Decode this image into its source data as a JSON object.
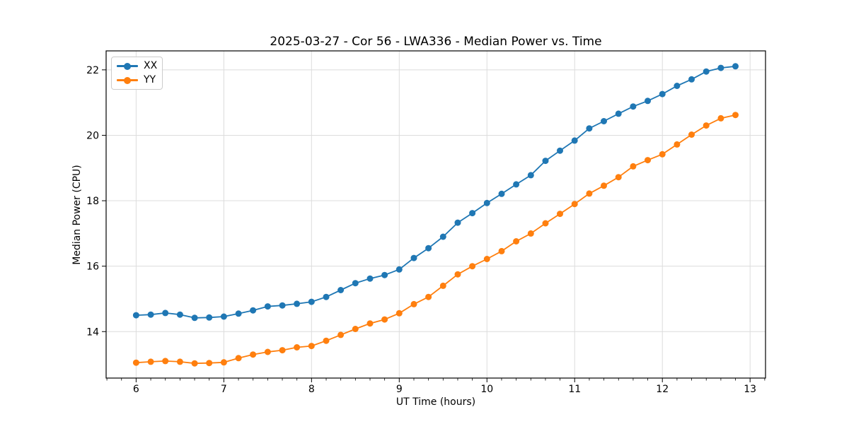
{
  "figure": {
    "background": "#ffffff",
    "frame_color": "#000000",
    "grid_color": "#dcdcdc",
    "text_color": "#000000"
  },
  "chart_data": {
    "type": "line",
    "title": "2025-03-27 - Cor 56 - LWA336 - Median Power vs. Time",
    "xlabel": "UT Time (hours)",
    "ylabel": "Median Power (CPU)",
    "xlim": [
      5.658,
      13.176
    ],
    "ylim": [
      12.58,
      22.58
    ],
    "xticks": [
      6,
      7,
      8,
      9,
      10,
      11,
      12,
      13
    ],
    "yticks": [
      14,
      16,
      18,
      20,
      22
    ],
    "x_minor_step": 0.16667,
    "grid": true,
    "legend_position": "upper-left",
    "marker": "circle",
    "x": [
      6.0,
      6.167,
      6.333,
      6.5,
      6.667,
      6.833,
      7.0,
      7.167,
      7.333,
      7.5,
      7.667,
      7.833,
      8.0,
      8.167,
      8.333,
      8.5,
      8.667,
      8.833,
      9.0,
      9.167,
      9.333,
      9.5,
      9.667,
      9.833,
      10.0,
      10.167,
      10.333,
      10.5,
      10.667,
      10.833,
      11.0,
      11.167,
      11.333,
      11.5,
      11.667,
      11.833,
      12.0,
      12.167,
      12.333,
      12.5,
      12.667,
      12.833
    ],
    "series": [
      {
        "name": "XX",
        "color": "#1f77b4",
        "values": [
          14.5,
          14.52,
          14.57,
          14.52,
          14.42,
          14.43,
          14.46,
          14.55,
          14.65,
          14.77,
          14.8,
          14.85,
          14.91,
          15.06,
          15.27,
          15.48,
          15.62,
          15.73,
          15.9,
          16.25,
          16.55,
          16.9,
          17.33,
          17.62,
          17.93,
          18.21,
          18.5,
          18.78,
          19.22,
          19.53,
          19.84,
          20.21,
          20.43,
          20.66,
          20.88,
          21.05,
          21.26,
          21.51,
          21.71,
          21.95,
          22.06,
          22.11
        ]
      },
      {
        "name": "YY",
        "color": "#ff7f0e",
        "values": [
          13.05,
          13.08,
          13.1,
          13.08,
          13.03,
          13.04,
          13.06,
          13.19,
          13.3,
          13.38,
          13.43,
          13.52,
          13.56,
          13.72,
          13.9,
          14.08,
          14.25,
          14.37,
          14.56,
          14.84,
          15.06,
          15.4,
          15.75,
          16.0,
          16.22,
          16.46,
          16.76,
          17.0,
          17.31,
          17.6,
          17.9,
          18.22,
          18.46,
          18.72,
          19.05,
          19.24,
          19.42,
          19.72,
          20.02,
          20.3,
          20.52,
          20.62
        ]
      }
    ]
  }
}
